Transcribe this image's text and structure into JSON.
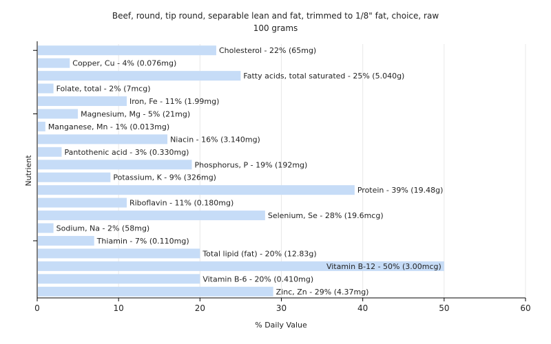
{
  "chart_data": {
    "type": "bar",
    "orientation": "horizontal",
    "title": "Beef, round, tip round, separable lean and fat, trimmed to 1/8\" fat, choice, raw",
    "subtitle": "100 grams",
    "xlabel": "% Daily Value",
    "ylabel": "Nutrient",
    "xlim": [
      0,
      60
    ],
    "xticks": [
      "0",
      "10",
      "20",
      "30",
      "40",
      "50",
      "60"
    ],
    "grid": true,
    "bar_color": "#c6dcf7",
    "gridline_color": "#e8e8e8",
    "axis_color": "#000000",
    "categories": [
      "Cholesterol - 22% (65mg)",
      "Copper, Cu - 4% (0.076mg)",
      "Fatty acids, total saturated - 25% (5.040g)",
      "Folate, total - 2% (7mcg)",
      "Iron, Fe - 11% (1.99mg)",
      "Magnesium, Mg - 5% (21mg)",
      "Manganese, Mn - 1% (0.013mg)",
      "Niacin - 16% (3.140mg)",
      "Pantothenic acid - 3% (0.330mg)",
      "Phosphorus, P - 19% (192mg)",
      "Potassium, K - 9% (326mg)",
      "Protein - 39% (19.48g)",
      "Riboflavin - 11% (0.180mg)",
      "Selenium, Se - 28% (19.6mcg)",
      "Sodium, Na - 2% (58mg)",
      "Thiamin - 7% (0.110mg)",
      "Total lipid (fat) - 20% (12.83g)",
      "Vitamin B-12 - 50% (3.00mcg)",
      "Vitamin B-6 - 20% (0.410mg)",
      "Zinc, Zn - 29% (4.37mg)"
    ],
    "values": [
      22,
      4,
      25,
      2,
      11,
      5,
      1,
      16,
      3,
      19,
      9,
      39,
      11,
      28,
      2,
      7,
      20,
      50,
      20,
      29
    ]
  }
}
